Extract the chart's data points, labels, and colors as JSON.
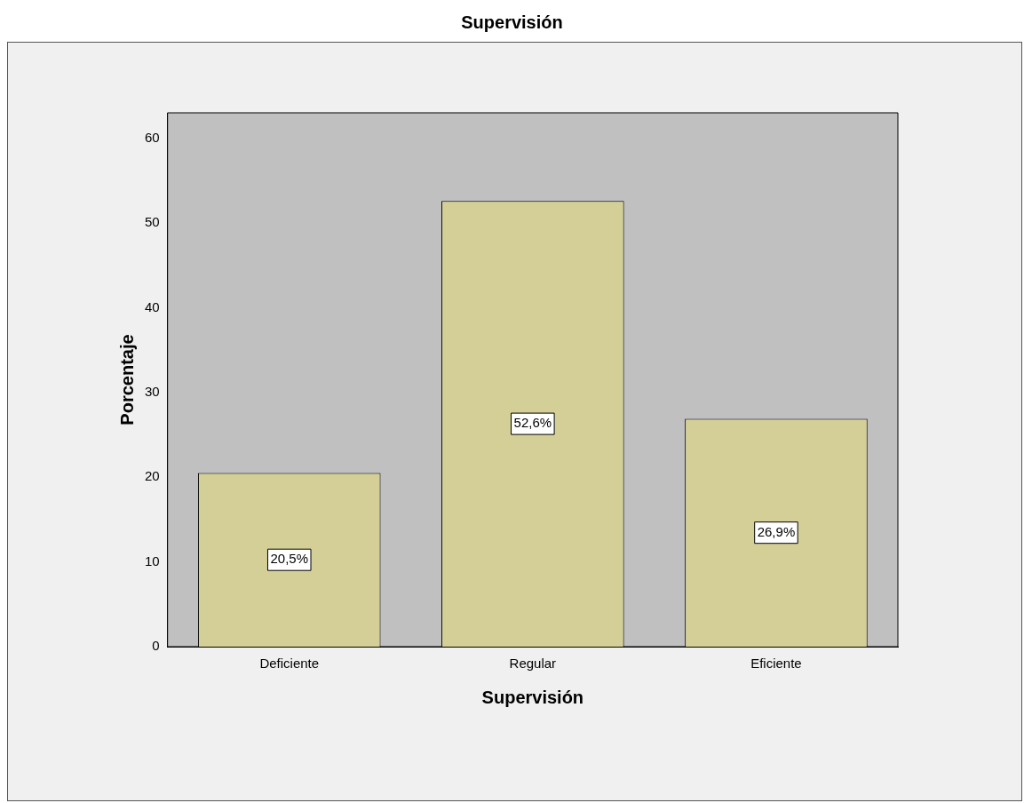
{
  "chart_data": {
    "type": "bar",
    "title": "Supervisión",
    "xlabel": "Supervisión",
    "ylabel": "Porcentaje",
    "categories": [
      "Deficiente",
      "Regular",
      "Eficiente"
    ],
    "values": [
      20.5,
      52.6,
      26.9
    ],
    "value_labels": [
      "20,5%",
      "52,6%",
      "26,9%"
    ],
    "color": "#d3cf97",
    "ylim": [
      0,
      63
    ],
    "yticks": [
      0,
      10,
      20,
      30,
      40,
      50,
      60
    ],
    "grid": false,
    "legend": false
  }
}
